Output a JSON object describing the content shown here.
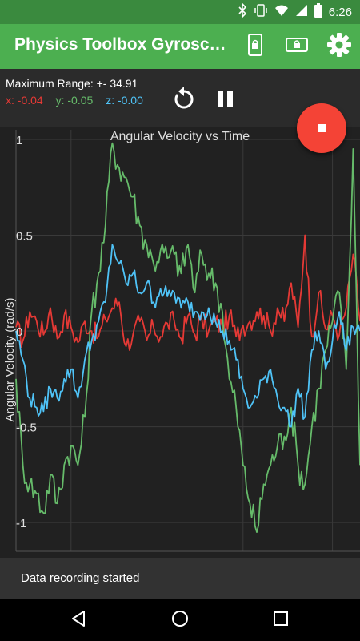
{
  "status_bar": {
    "time": "6:26"
  },
  "app_bar": {
    "title": "Physics Toolbox Gyroscope",
    "icons": [
      "phone-lock-icon",
      "screen-lock-icon",
      "settings-gear-icon"
    ]
  },
  "info": {
    "max_range": "Maximum Range: +- 34.91",
    "x": "x: -0.04",
    "y": "y: -0.05",
    "z": "z: -0.00"
  },
  "colors": {
    "appbar": "#4caf50",
    "statusbar": "#3a8a3e",
    "x": "#e53935",
    "y": "#66bb6a",
    "z": "#4fc3f7",
    "fab": "#f44336"
  },
  "snackbar": {
    "text": "Data recording started"
  },
  "chart_data": {
    "type": "line",
    "title": "Angular Velocity vs Time",
    "ylabel": "Angular Velocity (rad/s)",
    "xlabel": "",
    "ylim": [
      -1.15,
      1.05
    ],
    "xlim": [
      0,
      100
    ],
    "yticks": [
      1,
      0.5,
      0,
      -0.5,
      -1
    ],
    "ytick_labels": [
      "1",
      "0.5",
      "0",
      "-0.5",
      "-1"
    ],
    "grid": true,
    "x": [
      0,
      2,
      4,
      6,
      8,
      10,
      12,
      14,
      16,
      18,
      20,
      22,
      24,
      26,
      28,
      30,
      32,
      34,
      36,
      38,
      40,
      42,
      44,
      46,
      48,
      50,
      52,
      54,
      56,
      58,
      60,
      62,
      64,
      66,
      68,
      70,
      72,
      74,
      76,
      78,
      80,
      82,
      84,
      86,
      88,
      90,
      92,
      94,
      96,
      98,
      100
    ],
    "series": [
      {
        "values": [
          0.02,
          -0.05,
          0.1,
          0.05,
          -0.02,
          0.12,
          -0.04,
          0.08,
          0.02,
          -0.06,
          0.05,
          0.0,
          -0.03,
          0.06,
          0.12,
          0.15,
          -0.08,
          -0.02,
          0.05,
          -0.05,
          0.02,
          -0.03,
          0.04,
          0.05,
          -0.04,
          0.08,
          -0.02,
          0.06,
          0.0,
          0.05,
          0.02,
          0.08,
          -0.03,
          0.03,
          0.05,
          0.1,
          0.08,
          0.0,
          0.12,
          0.05,
          0.25,
          0.02,
          0.5,
          -0.03,
          0.2,
          0.01,
          0.08,
          -0.02,
          0.12,
          0.4,
          0.05
        ]
      },
      {
        "values": [
          -0.25,
          -0.7,
          -0.8,
          -0.85,
          -0.95,
          -0.75,
          -0.9,
          -0.7,
          -0.6,
          -0.7,
          -0.45,
          0.1,
          0.3,
          0.55,
          0.98,
          0.85,
          0.8,
          0.7,
          0.55,
          0.45,
          0.35,
          0.42,
          0.38,
          0.4,
          0.3,
          0.45,
          0.2,
          0.4,
          0.3,
          0.25,
          0.1,
          -0.25,
          -0.4,
          -0.7,
          -0.9,
          -1.05,
          -0.8,
          -0.7,
          -0.6,
          -0.55,
          -0.4,
          -0.7,
          -0.8,
          -0.5,
          -0.3,
          -0.1,
          0.05,
          0.2,
          -0.2,
          0.95,
          -0.7
        ]
      },
      {
        "values": [
          0.0,
          -0.15,
          -0.35,
          -0.4,
          -0.42,
          -0.3,
          -0.35,
          -0.25,
          -0.2,
          -0.35,
          -0.15,
          -0.05,
          0.05,
          0.15,
          0.45,
          0.35,
          0.25,
          0.3,
          0.2,
          0.25,
          0.15,
          0.22,
          0.18,
          0.2,
          0.12,
          0.15,
          0.1,
          0.1,
          0.12,
          0.05,
          0.0,
          -0.05,
          -0.15,
          -0.3,
          -0.4,
          -0.35,
          -0.25,
          -0.2,
          -0.35,
          -0.4,
          -0.5,
          -0.3,
          -0.45,
          -0.1,
          0.0,
          -0.2,
          -0.05,
          0.1,
          -0.1,
          0.02,
          0.0
        ]
      }
    ]
  }
}
